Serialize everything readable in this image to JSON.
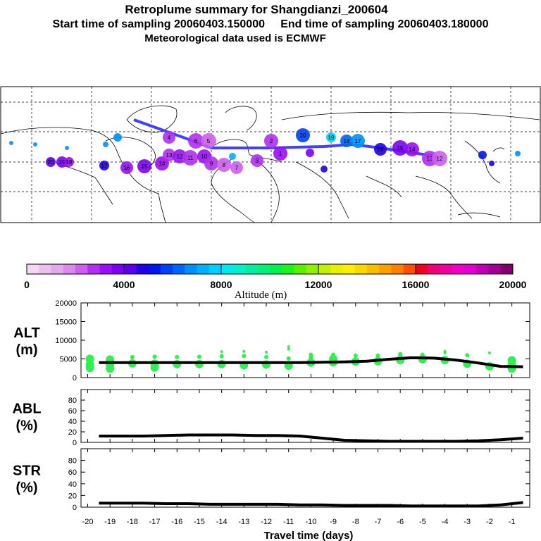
{
  "header": {
    "title": "Retroplume summary for Shangdianzi_200604",
    "sampling": "Start time of sampling 20060403.150000     End time of sampling 20060403.180000",
    "met": "Meteorological data used is ECMWF"
  },
  "map": {
    "description_labels": [
      "20",
      "19",
      "18",
      "17",
      "16",
      "15",
      "14",
      "13",
      "12",
      "11",
      "10",
      "9",
      "8",
      "7",
      "6",
      "5",
      "4",
      "3",
      "2",
      "1"
    ]
  },
  "colorbar": {
    "label": "Altitude (m)",
    "ticks": [
      "0",
      "4000",
      "8000",
      "12000",
      "16000",
      "20000"
    ],
    "colors": [
      "#f4d8f4",
      "#ecc0ec",
      "#e4a8ec",
      "#dc88ec",
      "#cc60ec",
      "#b030f0",
      "#9810f4",
      "#7c00f4",
      "#5c00ec",
      "#2000e8",
      "#0014f0",
      "#0040f4",
      "#0064f8",
      "#0090fc",
      "#00b0fc",
      "#00d0fc",
      "#00e8f0",
      "#00f0c8",
      "#00f0a0",
      "#00f078",
      "#00f050",
      "#20f020",
      "#58f000",
      "#90f000",
      "#c4f000",
      "#e8f000",
      "#fcf000",
      "#fcd800",
      "#fcbc00",
      "#fca000",
      "#fc8000",
      "#fc5000",
      "#f00020",
      "#f00078",
      "#f000a0",
      "#f000c0",
      "#e000d0",
      "#c000b0",
      "#a00090",
      "#800070"
    ]
  },
  "chart_data": [
    {
      "type": "line+scatter",
      "panel": "ALT",
      "ylabel": "ALT\n(m)",
      "ylabel_lines": [
        "ALT",
        "(m)"
      ],
      "ylim": [
        0,
        20000
      ],
      "yticks": [
        "20000",
        "15000",
        "10000",
        "5000",
        "0"
      ],
      "x": [
        -19.5,
        -18.5,
        -17.5,
        -16.5,
        -15.5,
        -14.5,
        -13.5,
        -12.5,
        -11.5,
        -10.5,
        -9.5,
        -8.5,
        -7.5,
        -6.5,
        -5.5,
        -4.5,
        -3.5,
        -2.5,
        -1.5,
        -0.5
      ],
      "median": [
        4000,
        4000,
        4000,
        4000,
        4000,
        4000,
        4000,
        4000,
        4000,
        4000,
        4100,
        4200,
        4400,
        4900,
        5300,
        5200,
        4700,
        3900,
        3000,
        2900
      ],
      "scatter_points": [
        [
          -19.9,
          3500
        ],
        [
          -19.9,
          5000
        ],
        [
          -19.9,
          2600
        ],
        [
          -19.0,
          3500
        ],
        [
          -19.0,
          4800
        ],
        [
          -19.0,
          2400
        ],
        [
          -18.0,
          3800
        ],
        [
          -18.0,
          5500
        ],
        [
          -17.0,
          3700
        ],
        [
          -17.0,
          5600
        ],
        [
          -17.0,
          2700
        ],
        [
          -16.0,
          3600
        ],
        [
          -16.0,
          5500
        ],
        [
          -15.0,
          3600
        ],
        [
          -15.0,
          5600
        ],
        [
          -14.0,
          3600
        ],
        [
          -14.0,
          5700
        ],
        [
          -14.0,
          6900
        ],
        [
          -13.0,
          3300
        ],
        [
          -13.0,
          5800
        ],
        [
          -13.0,
          7000
        ],
        [
          -12.0,
          3500
        ],
        [
          -12.0,
          5500
        ],
        [
          -12.0,
          6800
        ],
        [
          -11.0,
          3200
        ],
        [
          -11.0,
          5100
        ],
        [
          -11.0,
          7600
        ],
        [
          -11.0,
          8300
        ],
        [
          -10.0,
          4000
        ],
        [
          -10.0,
          6100
        ],
        [
          -10.0,
          5400
        ],
        [
          -9.0,
          4100
        ],
        [
          -9.0,
          6100
        ],
        [
          -9.0,
          5000
        ],
        [
          -8.0,
          4300
        ],
        [
          -8.0,
          5900
        ],
        [
          -7.0,
          4400
        ],
        [
          -7.0,
          5900
        ],
        [
          -6.0,
          4700
        ],
        [
          -6.0,
          5900
        ],
        [
          -6.0,
          6300
        ],
        [
          -5.0,
          4900
        ],
        [
          -5.0,
          6100
        ],
        [
          -4.0,
          4700
        ],
        [
          -4.0,
          6600
        ],
        [
          -4.0,
          7000
        ],
        [
          -3.0,
          3700
        ],
        [
          -3.0,
          6000
        ],
        [
          -2.0,
          3000
        ],
        [
          -2.0,
          6600
        ],
        [
          -1.0,
          2400
        ],
        [
          -1.0,
          3300
        ],
        [
          -1.0,
          4600
        ]
      ],
      "xlim": [
        -20.3,
        -0.2
      ]
    },
    {
      "type": "line",
      "panel": "ABL",
      "ylabel": "ABL\n(%)",
      "ylabel_lines": [
        "ABL",
        "(%)"
      ],
      "ylim": [
        0,
        100
      ],
      "yticks": [
        "80",
        "60",
        "40",
        "20",
        "0"
      ],
      "x": [
        -19.5,
        -18.5,
        -17.5,
        -16.5,
        -15.5,
        -14.5,
        -13.5,
        -12.5,
        -11.5,
        -10.5,
        -9.5,
        -8.5,
        -7.5,
        -6.5,
        -5.5,
        -4.5,
        -3.5,
        -2.5,
        -1.5,
        -0.5
      ],
      "values": [
        12,
        12,
        12,
        13,
        14,
        14,
        14,
        13,
        13,
        12,
        8,
        4,
        3,
        2,
        2,
        2,
        2,
        3,
        5,
        8
      ],
      "xlim": [
        -20.3,
        -0.2
      ]
    },
    {
      "type": "line",
      "panel": "STR",
      "ylabel": "STR\n(%)",
      "ylabel_lines": [
        "STR",
        "(%)"
      ],
      "ylim": [
        0,
        100
      ],
      "yticks": [
        "80",
        "60",
        "40",
        "20",
        "0"
      ],
      "x": [
        -19.5,
        -18.5,
        -17.5,
        -16.5,
        -15.5,
        -14.5,
        -13.5,
        -12.5,
        -11.5,
        -10.5,
        -9.5,
        -8.5,
        -7.5,
        -6.5,
        -5.5,
        -4.5,
        -3.5,
        -2.5,
        -1.5,
        -0.5
      ],
      "values": [
        7,
        7,
        7,
        6,
        6,
        5,
        5,
        5,
        5,
        4,
        4,
        3,
        3,
        3,
        2,
        2,
        2,
        2,
        4,
        8
      ],
      "xlim": [
        -20.3,
        -0.2
      ]
    }
  ],
  "xaxis": {
    "label": "Travel time (days)",
    "ticks": [
      "-20",
      "-19",
      "-18",
      "-17",
      "-16",
      "-15",
      "-14",
      "-13",
      "-12",
      "-11",
      "-10",
      "-9",
      "-8",
      "-7",
      "-6",
      "-5",
      "-4",
      "-3",
      "-2",
      "-1"
    ]
  }
}
